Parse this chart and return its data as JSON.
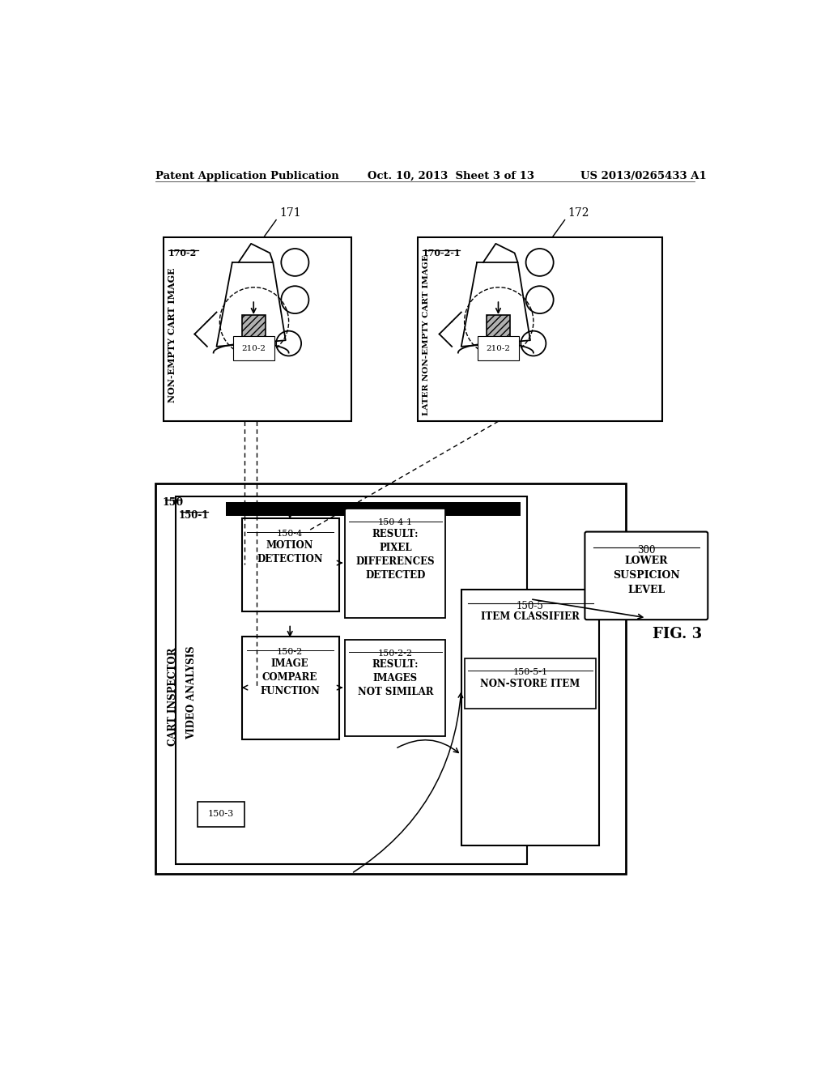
{
  "header_left": "Patent Application Publication",
  "header_center": "Oct. 10, 2013  Sheet 3 of 13",
  "header_right": "US 2013/0265433 A1",
  "fig_label": "FIG. 3",
  "box171_label": "171",
  "box171_sublabel": "170-2",
  "box171_title": "NON-EMPTY CART IMAGE",
  "box171_item": "210-2",
  "box172_label": "172",
  "box172_sublabel": "170-2-1",
  "box172_title": "LATER NON-EMPTY CART IMAGE",
  "box172_item": "210-2",
  "outer_box_label": "150",
  "outer_box_title": "CART INSPECTOR",
  "inner_box1_label": "150-1",
  "inner_box1_title": "VIDEO ANALYSIS",
  "box150_3_label": "150-3",
  "box150_2_label": "150-2",
  "box150_2_title": "IMAGE\nCOMPARE\nFUNCTION",
  "box150_2_result_label": "150-2-2",
  "box150_2_result": "RESULT:\nIMAGES\nNOT SIMILAR",
  "box150_4_label": "150-4",
  "box150_4_title": "MOTION\nDETECTION",
  "box150_4_result_label": "150-4-1",
  "box150_4_result": "RESULT:\nPIXEL\nDIFFERENCES\nDETECTED",
  "box150_5_label": "150-5",
  "box150_5_title": "ITEM CLASSIFIER",
  "box150_5_result_label": "150-5-1",
  "box150_5_result": "NON-STORE ITEM",
  "box300_label": "300",
  "box300_title": "LOWER\nSUSPICION\nLEVEL",
  "bg_color": "#ffffff",
  "box_edge_color": "#000000",
  "text_color": "#000000"
}
